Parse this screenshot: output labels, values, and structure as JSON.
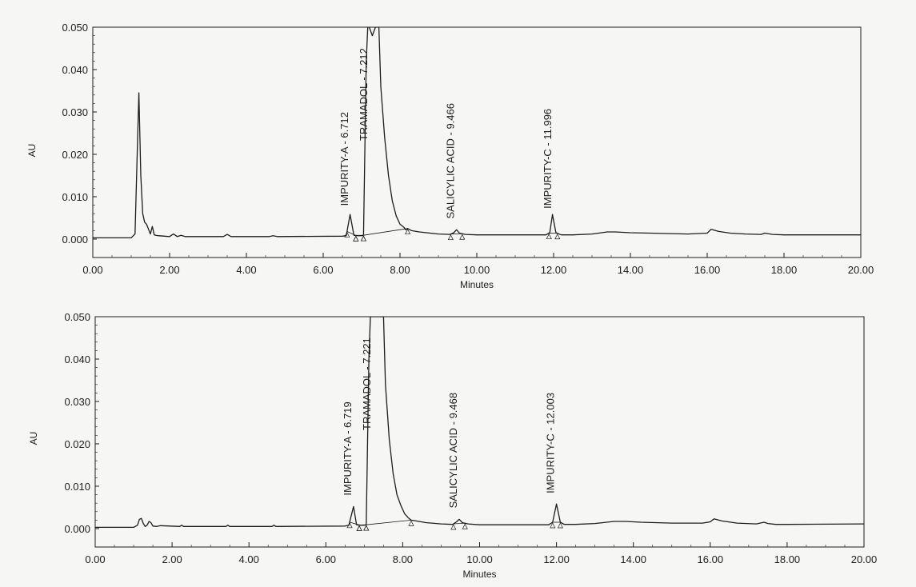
{
  "colors": {
    "ink": "#1c1c1c",
    "paper": "#f6f6f4"
  },
  "chart_data": [
    {
      "type": "line",
      "title": "",
      "xlabel": "Minutes",
      "ylabel": "AU",
      "xlim": [
        0,
        20
      ],
      "ylim": [
        0,
        0.05
      ],
      "x_ticks": [
        "0.00",
        "2.00",
        "4.00",
        "6.00",
        "8.00",
        "10.00",
        "12.00",
        "14.00",
        "16.00",
        "18.00",
        "20.00"
      ],
      "y_ticks": [
        "0.000",
        "0.010",
        "0.020",
        "0.030",
        "0.040",
        "0.050"
      ],
      "grid": false,
      "series": [
        {
          "x": [
            0.0,
            1.0,
            1.1,
            1.15,
            1.2,
            1.25,
            1.3,
            1.35,
            1.4,
            1.5,
            1.55,
            1.6,
            1.7,
            2.0,
            2.1,
            2.2,
            2.3,
            2.4,
            3.4,
            3.5,
            3.6,
            4.6,
            4.7,
            4.8,
            6.5,
            6.6,
            6.7,
            6.8,
            6.9,
            7.0,
            7.05,
            7.12,
            7.16,
            7.2,
            7.28,
            7.36,
            7.45,
            7.5,
            7.6,
            7.7,
            7.8,
            7.9,
            8.0,
            8.1,
            8.15,
            8.2,
            8.3,
            8.5,
            9.0,
            9.3,
            9.4,
            9.47,
            9.55,
            9.7,
            10.0,
            11.8,
            11.9,
            11.97,
            12.06,
            12.2,
            12.5,
            13.0,
            13.4,
            13.6,
            14.0,
            14.5,
            15.5,
            16.0,
            16.1,
            16.3,
            16.6,
            17.0,
            17.4,
            17.5,
            17.7,
            18.0,
            20.0
          ],
          "y": [
            0.0003,
            0.0003,
            0.0012,
            0.018,
            0.0345,
            0.015,
            0.006,
            0.004,
            0.0035,
            0.0012,
            0.003,
            0.001,
            0.0008,
            0.0006,
            0.0012,
            0.0006,
            0.0009,
            0.0006,
            0.0006,
            0.0011,
            0.0006,
            0.0006,
            0.0008,
            0.0006,
            0.0007,
            0.0008,
            0.0058,
            0.0009,
            0.0008,
            0.0008,
            0.0009,
            0.042,
            0.05,
            0.05,
            0.048,
            0.05,
            0.05,
            0.036,
            0.024,
            0.015,
            0.009,
            0.0055,
            0.0035,
            0.0028,
            0.0022,
            0.0025,
            0.002,
            0.0017,
            0.0012,
            0.0011,
            0.0015,
            0.0022,
            0.0014,
            0.0011,
            0.001,
            0.001,
            0.0015,
            0.0058,
            0.0015,
            0.001,
            0.001,
            0.0012,
            0.0017,
            0.0017,
            0.0015,
            0.0014,
            0.0012,
            0.0014,
            0.0023,
            0.0018,
            0.0014,
            0.0012,
            0.0011,
            0.0014,
            0.0011,
            0.001,
            0.001
          ]
        }
      ],
      "baselines": [
        {
          "x": [
            6.62,
            6.85
          ]
        },
        {
          "x": [
            6.85,
            7.05
          ]
        },
        {
          "x": [
            7.05,
            8.2
          ]
        },
        {
          "x": [
            9.32,
            9.62
          ]
        },
        {
          "x": [
            11.88,
            12.1
          ]
        }
      ],
      "annotations": [
        {
          "text": "IMPURITY-A - 6.712",
          "x": 6.712
        },
        {
          "text": "TRAMADOL - 7.212",
          "x": 7.212
        },
        {
          "text": "SALICYLIC ACID - 9.466",
          "x": 9.466
        },
        {
          "text": "IMPURITY-C - 11.996",
          "x": 11.996
        }
      ]
    },
    {
      "type": "line",
      "title": "",
      "xlabel": "Minutes",
      "ylabel": "AU",
      "xlim": [
        0,
        20
      ],
      "ylim": [
        0,
        0.05
      ],
      "x_ticks": [
        "0.00",
        "2.00",
        "4.00",
        "6.00",
        "8.00",
        "10.00",
        "12.00",
        "14.00",
        "16.00",
        "18.00",
        "20.00"
      ],
      "y_ticks": [
        "0.000",
        "0.010",
        "0.020",
        "0.030",
        "0.040",
        "0.050"
      ],
      "grid": false,
      "series": [
        {
          "x": [
            0.0,
            1.0,
            1.1,
            1.15,
            1.2,
            1.25,
            1.3,
            1.35,
            1.4,
            1.45,
            1.5,
            1.6,
            1.7,
            2.2,
            2.25,
            2.3,
            3.4,
            3.45,
            3.5,
            4.6,
            4.65,
            4.7,
            6.5,
            6.6,
            6.72,
            6.8,
            6.9,
            7.0,
            7.05,
            7.12,
            7.16,
            7.22,
            7.3,
            7.4,
            7.5,
            7.55,
            7.65,
            7.75,
            7.85,
            7.95,
            8.05,
            8.15,
            8.22,
            8.35,
            8.6,
            9.0,
            9.3,
            9.4,
            9.47,
            9.55,
            9.7,
            10.0,
            11.8,
            11.9,
            12.0,
            12.1,
            12.2,
            12.5,
            13.0,
            13.5,
            13.8,
            14.2,
            15.0,
            15.8,
            16.0,
            16.1,
            16.3,
            16.7,
            17.2,
            17.4,
            17.5,
            17.7,
            18.0,
            20.0
          ],
          "y": [
            0.0003,
            0.0003,
            0.0008,
            0.0022,
            0.0024,
            0.0012,
            0.0005,
            0.0008,
            0.0017,
            0.0014,
            0.0006,
            0.0005,
            0.0007,
            0.0005,
            0.0008,
            0.0005,
            0.0005,
            0.0008,
            0.0005,
            0.0005,
            0.0008,
            0.0005,
            0.0006,
            0.0008,
            0.0052,
            0.0009,
            0.0008,
            0.0008,
            0.0009,
            0.04,
            0.05,
            0.05,
            0.05,
            0.05,
            0.05,
            0.034,
            0.021,
            0.013,
            0.008,
            0.0055,
            0.0035,
            0.0025,
            0.002,
            0.0018,
            0.0014,
            0.0011,
            0.001,
            0.0016,
            0.0022,
            0.0014,
            0.0011,
            0.0009,
            0.0009,
            0.0015,
            0.0058,
            0.0015,
            0.001,
            0.001,
            0.0012,
            0.0017,
            0.0017,
            0.0015,
            0.0013,
            0.0013,
            0.0016,
            0.0023,
            0.0018,
            0.0013,
            0.0011,
            0.0015,
            0.0012,
            0.001,
            0.001,
            0.0011
          ]
        }
      ],
      "baselines": [
        {
          "x": [
            6.62,
            6.87
          ]
        },
        {
          "x": [
            6.87,
            7.05
          ]
        },
        {
          "x": [
            7.05,
            8.22
          ]
        },
        {
          "x": [
            9.32,
            9.62
          ]
        },
        {
          "x": [
            11.9,
            12.1
          ]
        }
      ],
      "annotations": [
        {
          "text": "IMPURITY-A - 6.719",
          "x": 6.719
        },
        {
          "text": "TRAMADOL - 7.221",
          "x": 7.221
        },
        {
          "text": "SALICYLIC ACID - 9.468",
          "x": 9.468
        },
        {
          "text": "IMPURITY-C - 12.003",
          "x": 12.003
        }
      ]
    }
  ]
}
